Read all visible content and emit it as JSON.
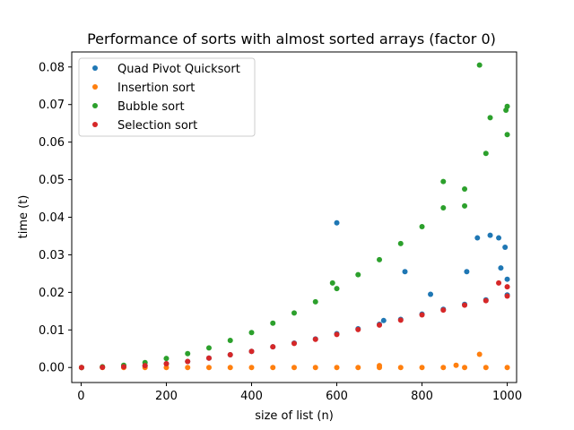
{
  "chart_data": {
    "type": "scatter",
    "title": "Performance of sorts with almost sorted arrays (factor 0)",
    "xlabel": "size of list (n)",
    "ylabel": "time (t)",
    "xlim": [
      -22,
      1022
    ],
    "ylim": [
      -0.004,
      0.084
    ],
    "xticks": [
      0,
      200,
      400,
      600,
      800,
      1000
    ],
    "yticks": [
      0.0,
      0.01,
      0.02,
      0.03,
      0.04,
      0.05,
      0.06,
      0.07,
      0.08
    ],
    "yticks_labels": [
      "0.00",
      "0.01",
      "0.02",
      "0.03",
      "0.04",
      "0.05",
      "0.06",
      "0.07",
      "0.08"
    ],
    "grid": false,
    "legend_position": "upper-left",
    "x": [
      1,
      50,
      100,
      150,
      200,
      250,
      300,
      350,
      400,
      450,
      500,
      550,
      600,
      650,
      700,
      750,
      800,
      850,
      900,
      950,
      1000
    ],
    "series": [
      {
        "name": "Quad Pivot Quicksort",
        "color": "#1f77b4",
        "values": [
          0.0,
          5e-05,
          0.0002,
          0.0005,
          0.001,
          0.0016,
          0.0025,
          0.0034,
          0.0043,
          0.0055,
          0.0065,
          0.0076,
          0.009,
          0.0103,
          0.0115,
          0.0128,
          0.0142,
          0.0155,
          0.0168,
          0.018,
          0.0193
        ],
        "outliers": [
          [
            600,
            0.0385
          ],
          [
            710,
            0.0125
          ],
          [
            760,
            0.0255
          ],
          [
            820,
            0.0195
          ],
          [
            905,
            0.0255
          ],
          [
            930,
            0.0345
          ],
          [
            960,
            0.0352
          ],
          [
            980,
            0.0345
          ],
          [
            985,
            0.0265
          ],
          [
            995,
            0.032
          ],
          [
            1000,
            0.0235
          ]
        ]
      },
      {
        "name": "Insertion sort",
        "color": "#ff7f0e",
        "values": [
          0.0,
          0.0,
          0.0,
          0.0,
          0.0,
          0.0,
          0.0,
          0.0,
          0.0,
          0.0,
          0.0,
          0.0,
          0.0,
          0.0,
          0.0,
          0.0,
          0.0,
          0.0,
          0.0,
          0.0,
          0.0
        ],
        "outliers": [
          [
            935,
            0.0035
          ],
          [
            700,
            0.0005
          ],
          [
            880,
            0.0006
          ]
        ]
      },
      {
        "name": "Bubble sort",
        "color": "#2ca02c",
        "values": [
          0.0,
          0.0002,
          0.0006,
          0.0013,
          0.0024,
          0.0037,
          0.0052,
          0.0072,
          0.0093,
          0.0118,
          0.0145,
          0.0175,
          0.021,
          0.0247,
          0.0287,
          0.033,
          0.0375,
          0.0425,
          0.0475,
          0.057,
          0.062
        ],
        "outliers": [
          [
            935,
            0.0805
          ],
          [
            1000,
            0.0695
          ],
          [
            997,
            0.0685
          ],
          [
            900,
            0.043
          ],
          [
            590,
            0.0225
          ],
          [
            850,
            0.0495
          ],
          [
            960,
            0.0665
          ]
        ]
      },
      {
        "name": "Selection sort",
        "color": "#d62728",
        "values": [
          0.0,
          5e-05,
          0.0002,
          0.0005,
          0.001,
          0.0016,
          0.0025,
          0.0034,
          0.0043,
          0.0055,
          0.0064,
          0.0075,
          0.0088,
          0.0101,
          0.0113,
          0.0126,
          0.014,
          0.0153,
          0.0166,
          0.0178,
          0.019
        ],
        "outliers": [
          [
            1000,
            0.0215
          ],
          [
            980,
            0.0225
          ]
        ]
      }
    ]
  }
}
